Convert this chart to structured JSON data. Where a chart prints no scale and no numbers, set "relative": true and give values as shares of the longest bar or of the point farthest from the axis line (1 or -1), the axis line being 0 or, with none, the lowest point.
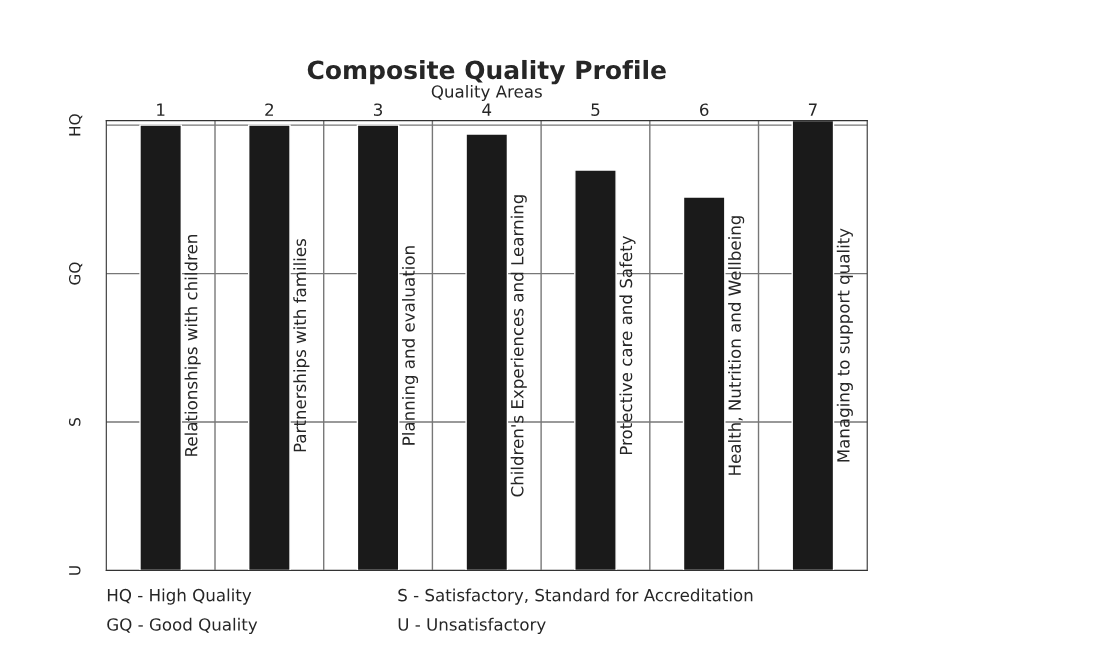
{
  "chart_data": {
    "type": "bar",
    "title": "Composite Quality Profile",
    "xlabel": "Quality Areas",
    "categories": [
      "1",
      "2",
      "3",
      "4",
      "5",
      "6",
      "7"
    ],
    "values": [
      0.99,
      0.99,
      0.99,
      0.97,
      0.89,
      0.83,
      1
    ],
    "relative": true,
    "color": "#1a1a1a",
    "ref_lines": [
      {
        "axis": "y",
        "value": 0,
        "label": "U",
        "color": "#333333"
      },
      {
        "axis": "y",
        "value": 0.33,
        "label": "S",
        "color": "#777777"
      },
      {
        "axis": "y",
        "value": 0.66,
        "label": "GQ",
        "color": "#777777"
      },
      {
        "axis": "y",
        "value": 0.99,
        "label": "HQ",
        "color": "#777777"
      }
    ],
    "grid": "x",
    "legend": false,
    "annotations": [
      "Relationships with children",
      "Partnerships with families",
      "Planning and evaluation",
      "Children's Experiences and Learning",
      "Protective care and Safety",
      "Health, Nutrition and Wellbeing",
      "Managing to support quality",
      "HQ - High Quality",
      "GQ - Good Quality",
      "S - Satisfactory, Standard for Accreditation",
      "U - Unsatisfactory"
    ]
  }
}
